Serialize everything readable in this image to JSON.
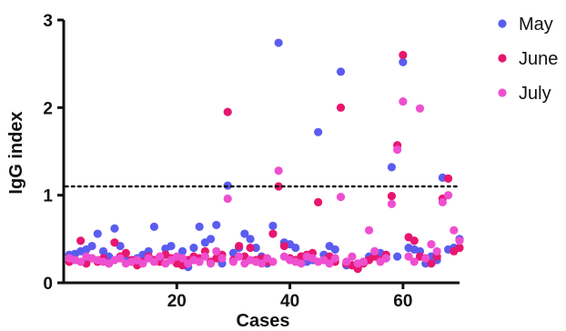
{
  "chart_data": {
    "type": "scatter",
    "xlabel": "Cases",
    "ylabel": "IgG index",
    "xlim": [
      0,
      70
    ],
    "ylim": [
      0,
      3
    ],
    "xticks": [
      20,
      40,
      60
    ],
    "yticks": [
      0,
      1,
      2,
      3
    ],
    "threshold": 1.1,
    "threshold_style": "dotted",
    "grid": false,
    "legend_position": "top-right",
    "series": [
      {
        "name": "May",
        "color": "#5b5cf0",
        "points": [
          [
            1,
            0.32
          ],
          [
            2,
            0.33
          ],
          [
            3,
            0.36
          ],
          [
            4,
            0.38
          ],
          [
            5,
            0.42
          ],
          [
            6,
            0.56
          ],
          [
            7,
            0.36
          ],
          [
            8,
            0.3
          ],
          [
            9,
            0.62
          ],
          [
            10,
            0.42
          ],
          [
            11,
            0.27
          ],
          [
            12,
            0.24
          ],
          [
            13,
            0.28
          ],
          [
            14,
            0.32
          ],
          [
            15,
            0.36
          ],
          [
            16,
            0.64
          ],
          [
            17,
            0.28
          ],
          [
            18,
            0.39
          ],
          [
            19,
            0.42
          ],
          [
            20,
            0.28
          ],
          [
            21,
            0.36
          ],
          [
            22,
            0.18
          ],
          [
            23,
            0.4
          ],
          [
            24,
            0.64
          ],
          [
            25,
            0.46
          ],
          [
            26,
            0.5
          ],
          [
            27,
            0.66
          ],
          [
            28,
            0.22
          ],
          [
            29,
            1.11
          ],
          [
            30,
            0.34
          ],
          [
            31,
            0.4
          ],
          [
            32,
            0.56
          ],
          [
            33,
            0.5
          ],
          [
            34,
            0.4
          ],
          [
            35,
            0.3
          ],
          [
            36,
            0.22
          ],
          [
            37,
            0.65
          ],
          [
            38,
            2.74
          ],
          [
            39,
            0.46
          ],
          [
            40,
            0.44
          ],
          [
            41,
            0.4
          ],
          [
            42,
            0.3
          ],
          [
            43,
            0.24
          ],
          [
            44,
            0.26
          ],
          [
            45,
            1.72
          ],
          [
            46,
            0.32
          ],
          [
            47,
            0.42
          ],
          [
            48,
            0.38
          ],
          [
            49,
            2.41
          ],
          [
            50,
            0.2
          ],
          [
            51,
            0.2
          ],
          [
            52,
            0.22
          ],
          [
            53,
            0.24
          ],
          [
            54,
            0.3
          ],
          [
            55,
            0.36
          ],
          [
            56,
            0.34
          ],
          [
            57,
            0.28
          ],
          [
            58,
            1.32
          ],
          [
            59,
            0.3
          ],
          [
            60,
            2.52
          ],
          [
            61,
            0.4
          ],
          [
            62,
            0.38
          ],
          [
            63,
            0.36
          ],
          [
            64,
            0.22
          ],
          [
            65,
            0.3
          ],
          [
            66,
            0.26
          ],
          [
            67,
            1.2
          ],
          [
            68,
            0.38
          ],
          [
            69,
            0.4
          ],
          [
            70,
            0.5
          ]
        ]
      },
      {
        "name": "June",
        "color": "#e8166f",
        "points": [
          [
            1,
            0.24
          ],
          [
            2,
            0.26
          ],
          [
            3,
            0.48
          ],
          [
            4,
            0.22
          ],
          [
            5,
            0.28
          ],
          [
            6,
            0.24
          ],
          [
            7,
            0.28
          ],
          [
            8,
            0.22
          ],
          [
            9,
            0.46
          ],
          [
            10,
            0.3
          ],
          [
            11,
            0.34
          ],
          [
            12,
            0.26
          ],
          [
            13,
            0.2
          ],
          [
            14,
            0.24
          ],
          [
            15,
            0.3
          ],
          [
            16,
            0.26
          ],
          [
            17,
            0.24
          ],
          [
            18,
            0.32
          ],
          [
            19,
            0.28
          ],
          [
            20,
            0.22
          ],
          [
            21,
            0.2
          ],
          [
            22,
            0.26
          ],
          [
            23,
            0.3
          ],
          [
            24,
            0.28
          ],
          [
            25,
            0.36
          ],
          [
            26,
            0.24
          ],
          [
            27,
            0.28
          ],
          [
            28,
            0.32
          ],
          [
            29,
            1.95
          ],
          [
            30,
            0.26
          ],
          [
            31,
            0.42
          ],
          [
            32,
            0.3
          ],
          [
            33,
            0.4
          ],
          [
            34,
            0.26
          ],
          [
            35,
            0.28
          ],
          [
            36,
            0.24
          ],
          [
            37,
            0.56
          ],
          [
            38,
            1.1
          ],
          [
            39,
            0.42
          ],
          [
            40,
            0.28
          ],
          [
            41,
            0.26
          ],
          [
            42,
            0.3
          ],
          [
            43,
            0.32
          ],
          [
            44,
            0.34
          ],
          [
            45,
            0.92
          ],
          [
            46,
            0.26
          ],
          [
            47,
            0.3
          ],
          [
            48,
            0.24
          ],
          [
            49,
            2.0
          ],
          [
            50,
            0.22
          ],
          [
            51,
            0.2
          ],
          [
            52,
            0.16
          ],
          [
            53,
            0.22
          ],
          [
            54,
            0.26
          ],
          [
            55,
            0.3
          ],
          [
            56,
            0.26
          ],
          [
            57,
            0.32
          ],
          [
            58,
            0.99
          ],
          [
            59,
            1.57
          ],
          [
            60,
            2.6
          ],
          [
            61,
            0.52
          ],
          [
            62,
            0.48
          ],
          [
            63,
            0.3
          ],
          [
            64,
            0.28
          ],
          [
            65,
            0.22
          ],
          [
            66,
            0.3
          ],
          [
            67,
            0.96
          ],
          [
            68,
            1.19
          ],
          [
            69,
            0.36
          ],
          [
            70,
            0.4
          ]
        ]
      },
      {
        "name": "July",
        "color": "#ee4fd0",
        "points": [
          [
            1,
            0.28
          ],
          [
            2,
            0.26
          ],
          [
            3,
            0.24
          ],
          [
            4,
            0.3
          ],
          [
            5,
            0.28
          ],
          [
            6,
            0.26
          ],
          [
            7,
            0.24
          ],
          [
            8,
            0.22
          ],
          [
            9,
            0.26
          ],
          [
            10,
            0.28
          ],
          [
            11,
            0.22
          ],
          [
            12,
            0.24
          ],
          [
            13,
            0.26
          ],
          [
            14,
            0.22
          ],
          [
            15,
            0.28
          ],
          [
            16,
            0.24
          ],
          [
            17,
            0.3
          ],
          [
            18,
            0.22
          ],
          [
            19,
            0.26
          ],
          [
            20,
            0.3
          ],
          [
            21,
            0.28
          ],
          [
            22,
            0.22
          ],
          [
            23,
            0.26
          ],
          [
            24,
            0.24
          ],
          [
            25,
            0.3
          ],
          [
            26,
            0.22
          ],
          [
            27,
            0.36
          ],
          [
            28,
            0.28
          ],
          [
            29,
            0.96
          ],
          [
            30,
            0.24
          ],
          [
            31,
            0.3
          ],
          [
            32,
            0.22
          ],
          [
            33,
            0.26
          ],
          [
            34,
            0.24
          ],
          [
            35,
            0.22
          ],
          [
            36,
            0.28
          ],
          [
            37,
            0.24
          ],
          [
            38,
            1.28
          ],
          [
            39,
            0.3
          ],
          [
            40,
            0.26
          ],
          [
            41,
            0.24
          ],
          [
            42,
            0.22
          ],
          [
            43,
            0.3
          ],
          [
            44,
            0.28
          ],
          [
            45,
            0.24
          ],
          [
            46,
            0.26
          ],
          [
            47,
            0.22
          ],
          [
            48,
            0.28
          ],
          [
            49,
            0.98
          ],
          [
            50,
            0.24
          ],
          [
            51,
            0.3
          ],
          [
            52,
            0.22
          ],
          [
            53,
            0.24
          ],
          [
            54,
            0.6
          ],
          [
            55,
            0.36
          ],
          [
            56,
            0.24
          ],
          [
            57,
            0.28
          ],
          [
            58,
            0.9
          ],
          [
            59,
            1.52
          ],
          [
            60,
            2.07
          ],
          [
            61,
            0.3
          ],
          [
            62,
            0.24
          ],
          [
            63,
            1.99
          ],
          [
            64,
            0.28
          ],
          [
            65,
            0.44
          ],
          [
            66,
            0.36
          ],
          [
            67,
            0.92
          ],
          [
            68,
            1.0
          ],
          [
            69,
            0.6
          ],
          [
            70,
            0.48
          ]
        ]
      }
    ]
  }
}
